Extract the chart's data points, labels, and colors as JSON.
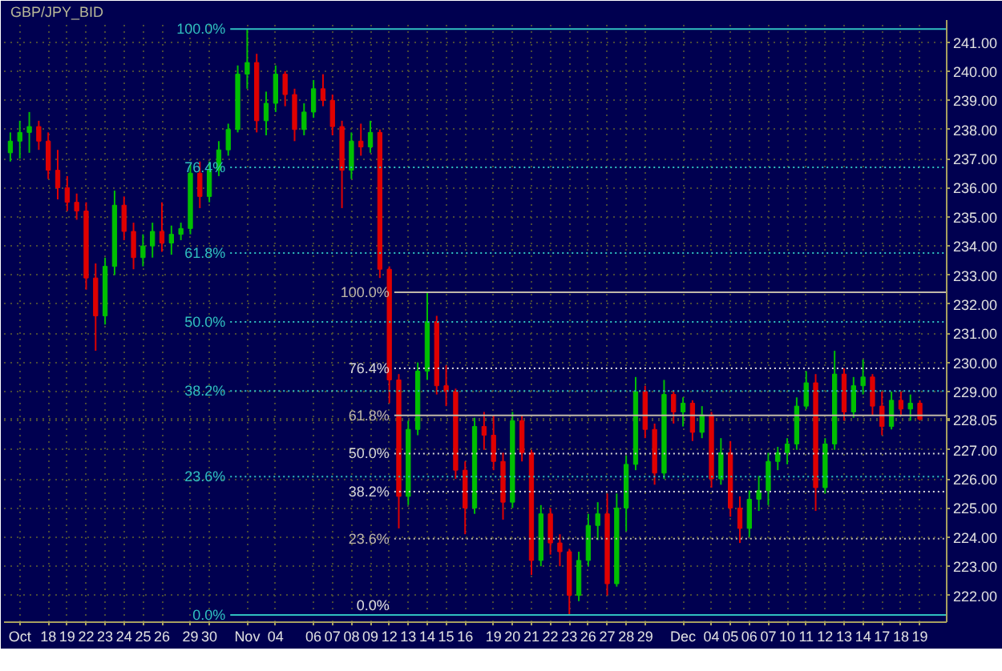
{
  "chart_data": {
    "type": "candlestick",
    "title": "GBP/JPY_BID",
    "categories": [
      null,
      "Oct",
      null,
      null,
      "18",
      null,
      "19",
      null,
      "22",
      null,
      "23",
      null,
      "24",
      null,
      "25",
      null,
      "26",
      null,
      null,
      "29",
      null,
      "30",
      null,
      null,
      null,
      "Nov",
      null,
      null,
      "04",
      null,
      null,
      null,
      "06",
      null,
      "07",
      null,
      "08",
      null,
      "09",
      null,
      "12",
      null,
      "13",
      null,
      "14",
      null,
      "15",
      null,
      "16",
      null,
      null,
      "19",
      null,
      "20",
      null,
      "21",
      null,
      "22",
      null,
      "23",
      null,
      "26",
      null,
      "27",
      null,
      "28",
      null,
      "29",
      null,
      null,
      null,
      "Dec",
      null,
      null,
      "04",
      null,
      "05",
      null,
      "06",
      null,
      "07",
      null,
      "10",
      null,
      "11",
      null,
      "12",
      null,
      "13",
      null,
      "14",
      null,
      "17",
      null,
      "18",
      null,
      "19"
    ],
    "ohlc": [
      [
        237.2,
        237.9,
        236.9,
        237.6
      ],
      [
        237.6,
        238.3,
        237.0,
        237.9
      ],
      [
        237.9,
        238.6,
        237.2,
        238.1
      ],
      [
        238.1,
        238.3,
        237.3,
        237.6
      ],
      [
        237.6,
        237.9,
        236.3,
        236.6
      ],
      [
        236.6,
        237.3,
        235.6,
        236.0
      ],
      [
        236.0,
        236.4,
        235.2,
        235.5
      ],
      [
        235.5,
        235.8,
        234.9,
        235.2
      ],
      [
        235.2,
        235.5,
        232.5,
        232.9
      ],
      [
        232.9,
        233.4,
        230.4,
        231.6
      ],
      [
        231.6,
        233.6,
        231.3,
        233.3
      ],
      [
        233.3,
        235.9,
        233.0,
        235.4
      ],
      [
        235.4,
        235.7,
        234.2,
        234.5
      ],
      [
        234.5,
        234.8,
        233.2,
        233.6
      ],
      [
        233.6,
        234.4,
        233.3,
        234.0
      ],
      [
        234.0,
        234.8,
        233.6,
        234.5
      ],
      [
        234.5,
        235.5,
        233.8,
        234.1
      ],
      [
        234.1,
        234.7,
        233.7,
        234.4
      ],
      [
        234.4,
        234.8,
        234.2,
        234.6
      ],
      [
        234.6,
        236.8,
        234.4,
        236.5
      ],
      [
        236.5,
        236.9,
        235.3,
        235.7
      ],
      [
        235.7,
        236.9,
        235.5,
        236.6
      ],
      [
        236.6,
        237.6,
        236.4,
        237.3
      ],
      [
        237.3,
        238.2,
        237.1,
        238.0
      ],
      [
        238.0,
        240.2,
        237.9,
        239.9
      ],
      [
        239.9,
        241.45,
        239.4,
        240.3
      ],
      [
        240.3,
        240.6,
        237.9,
        238.3
      ],
      [
        238.3,
        239.3,
        237.8,
        238.9
      ],
      [
        238.9,
        240.2,
        238.6,
        239.9
      ],
      [
        239.9,
        240.0,
        238.8,
        239.2
      ],
      [
        239.2,
        239.4,
        237.6,
        238.0
      ],
      [
        238.0,
        238.9,
        237.8,
        238.6
      ],
      [
        238.6,
        239.7,
        238.4,
        239.4
      ],
      [
        239.4,
        239.9,
        238.8,
        239.0
      ],
      [
        239.0,
        239.2,
        237.8,
        238.1
      ],
      [
        238.1,
        238.3,
        235.3,
        236.6
      ],
      [
        236.6,
        237.9,
        236.3,
        237.6
      ],
      [
        237.6,
        238.2,
        237.1,
        237.4
      ],
      [
        237.4,
        238.3,
        237.2,
        237.9
      ],
      [
        237.9,
        238.0,
        232.9,
        233.2
      ],
      [
        233.2,
        233.3,
        228.6,
        229.4
      ],
      [
        229.4,
        229.6,
        224.3,
        225.4
      ],
      [
        225.4,
        228.0,
        225.1,
        227.7
      ],
      [
        227.7,
        230.0,
        227.5,
        229.7
      ],
      [
        229.7,
        232.41,
        229.4,
        231.4
      ],
      [
        231.4,
        231.6,
        228.9,
        229.2
      ],
      [
        229.2,
        229.9,
        228.5,
        229.0
      ],
      [
        229.0,
        229.1,
        226.0,
        226.3
      ],
      [
        226.3,
        226.6,
        224.1,
        225.0
      ],
      [
        225.0,
        228.1,
        224.8,
        227.8
      ],
      [
        227.8,
        228.3,
        227.0,
        227.5
      ],
      [
        227.5,
        228.2,
        226.3,
        226.6
      ],
      [
        226.6,
        226.9,
        224.6,
        225.2
      ],
      [
        225.2,
        228.3,
        225.0,
        228.0
      ],
      [
        228.0,
        228.2,
        226.6,
        226.9
      ],
      [
        226.9,
        227.0,
        222.7,
        223.2
      ],
      [
        223.2,
        225.1,
        223.0,
        224.8
      ],
      [
        224.8,
        225.0,
        223.4,
        223.8
      ],
      [
        223.8,
        224.1,
        223.0,
        223.5
      ],
      [
        223.5,
        223.6,
        221.33,
        222.0
      ],
      [
        222.0,
        223.5,
        221.8,
        223.2
      ],
      [
        223.2,
        224.8,
        223.0,
        224.4
      ],
      [
        224.4,
        225.2,
        223.9,
        224.8
      ],
      [
        224.8,
        225.5,
        222.0,
        222.4
      ],
      [
        222.4,
        225.5,
        222.3,
        225.0
      ],
      [
        225.0,
        226.8,
        224.2,
        226.5
      ],
      [
        226.5,
        229.5,
        226.3,
        229.0
      ],
      [
        229.0,
        229.2,
        227.4,
        227.7
      ],
      [
        227.7,
        227.9,
        225.8,
        226.2
      ],
      [
        226.2,
        229.4,
        226.0,
        228.9
      ],
      [
        228.9,
        229.0,
        227.9,
        228.3
      ],
      [
        228.3,
        228.8,
        227.8,
        228.6
      ],
      [
        228.6,
        228.7,
        227.3,
        227.6
      ],
      [
        227.6,
        228.5,
        227.4,
        228.2
      ],
      [
        228.2,
        228.3,
        225.7,
        226.0
      ],
      [
        226.0,
        227.4,
        225.8,
        226.9
      ],
      [
        226.9,
        227.3,
        224.7,
        225.0
      ],
      [
        225.0,
        225.4,
        223.8,
        224.3
      ],
      [
        224.3,
        225.6,
        224.0,
        225.3
      ],
      [
        225.3,
        226.1,
        224.9,
        225.6
      ],
      [
        225.6,
        226.9,
        225.1,
        226.6
      ],
      [
        226.6,
        227.1,
        226.3,
        226.9
      ],
      [
        226.9,
        227.4,
        226.5,
        227.2
      ],
      [
        227.2,
        228.8,
        227.0,
        228.5
      ],
      [
        228.5,
        229.7,
        228.4,
        229.3
      ],
      [
        229.3,
        229.6,
        224.9,
        225.7
      ],
      [
        225.7,
        227.4,
        225.5,
        227.2
      ],
      [
        227.2,
        230.4,
        227.0,
        229.6
      ],
      [
        229.6,
        229.8,
        228.0,
        228.3
      ],
      [
        228.3,
        229.5,
        228.1,
        229.2
      ],
      [
        229.2,
        230.1,
        228.9,
        229.5
      ],
      [
        229.5,
        229.6,
        228.2,
        228.5
      ],
      [
        228.5,
        229.0,
        227.5,
        227.8
      ],
      [
        227.8,
        229.0,
        227.7,
        228.7
      ],
      [
        228.7,
        229.0,
        228.2,
        228.4
      ],
      [
        228.4,
        228.9,
        228.0,
        228.6
      ],
      [
        228.6,
        228.7,
        228.0,
        228.05
      ]
    ],
    "colors": [
      "#00c000",
      "#00c000",
      "#00c000",
      "#e00000",
      "#e00000",
      "#e00000",
      "#e00000",
      "#e00000",
      "#e00000",
      "#e00000",
      "#00c000",
      "#00c000",
      "#e00000",
      "#e00000",
      "#00c000",
      "#00c000",
      "#e00000",
      "#00c000",
      "#00c000",
      "#00c000",
      "#e00000",
      "#00c000",
      "#00c000",
      "#00c000",
      "#00c000",
      "#00c000",
      "#e00000",
      "#00c000",
      "#00c000",
      "#e00000",
      "#e00000",
      "#00c000",
      "#00c000",
      "#e00000",
      "#e00000",
      "#e00000",
      "#00c000",
      "#e00000",
      "#00c000",
      "#e00000",
      "#e00000",
      "#e00000",
      "#00c000",
      "#00c000",
      "#00c000",
      "#e00000",
      "#e00000",
      "#e00000",
      "#e00000",
      "#00c000",
      "#e00000",
      "#e00000",
      "#e00000",
      "#00c000",
      "#e00000",
      "#e00000",
      "#00c000",
      "#e00000",
      "#e00000",
      "#e00000",
      "#00c000",
      "#00c000",
      "#00c000",
      "#e00000",
      "#00c000",
      "#00c000",
      "#00c000",
      "#e00000",
      "#e00000",
      "#00c000",
      "#e00000",
      "#00c000",
      "#e00000",
      "#00c000",
      "#e00000",
      "#00c000",
      "#e00000",
      "#e00000",
      "#00c000",
      "#00c000",
      "#00c000",
      "#00c000",
      "#00c000",
      "#00c000",
      "#00c000",
      "#e00000",
      "#00c000",
      "#00c000",
      "#e00000",
      "#00c000",
      "#00c000",
      "#e00000",
      "#e00000",
      "#00c000",
      "#e00000",
      "#00c000",
      "#e00000"
    ],
    "ylim": [
      221.08,
      241.76
    ],
    "yticks": [
      {
        "value": 222,
        "label": "222.00"
      },
      {
        "value": 223,
        "label": "223.00"
      },
      {
        "value": 224,
        "label": "224.00"
      },
      {
        "value": 225,
        "label": "225.00"
      },
      {
        "value": 226,
        "label": "226.00"
      },
      {
        "value": 227,
        "label": "227.00"
      },
      {
        "value": 228,
        "label": null
      },
      228.05,
      {
        "value": 229,
        "label": "229.00"
      },
      {
        "value": 230,
        "label": "230.00"
      },
      {
        "value": 231,
        "label": "231.00"
      },
      {
        "value": 232,
        "label": "232.00"
      },
      {
        "value": 233,
        "label": "233.00"
      },
      {
        "value": 234,
        "label": "234.00"
      },
      {
        "value": 235,
        "label": "235.00"
      },
      {
        "value": 236,
        "label": "236.00"
      },
      {
        "value": 237,
        "label": "237.00"
      },
      {
        "value": 238,
        "label": "238.00"
      },
      {
        "value": 239,
        "label": "239.00"
      },
      {
        "value": 240,
        "label": "240.00"
      },
      {
        "value": 241,
        "label": "241.00"
      }
    ],
    "ref_lines": [
      {
        "axis": "y",
        "value": 241.45,
        "color": "#30c0c0",
        "line_style": "solid"
      },
      {
        "axis": "y",
        "value": 236.7,
        "color": "#30c0c0",
        "line_style": "dotted"
      },
      {
        "axis": "y",
        "value": 233.76,
        "color": "#30c0c0",
        "line_style": "dotted"
      },
      {
        "axis": "y",
        "value": 231.39,
        "color": "#30c0c0",
        "line_style": "dotted"
      },
      {
        "axis": "y",
        "value": 229.02,
        "color": "#30c0c0",
        "line_style": "dotted"
      },
      {
        "axis": "y",
        "value": 226.08,
        "color": "#30c0c0",
        "line_style": "dotted"
      },
      {
        "axis": "y",
        "value": 221.33,
        "color": "#30c0c0",
        "line_style": "solid"
      },
      {
        "axis": "y",
        "value": 232.41,
        "color": "#c0b8a8",
        "line_style": "solid"
      },
      {
        "axis": "y",
        "value": 229.8,
        "color": "#d8d8d8",
        "line_style": "dotted"
      },
      {
        "axis": "y",
        "value": 228.18,
        "color": "#c0b8a8",
        "line_style": "solid"
      },
      {
        "axis": "y",
        "value": 226.87,
        "color": "#d8d8d8",
        "line_style": "dotted"
      },
      {
        "axis": "y",
        "value": 225.56,
        "color": "#d8d8d8",
        "line_style": "dotted"
      },
      {
        "axis": "y",
        "value": 223.95,
        "color": "#c0b8a8",
        "line_style": "dotted"
      }
    ],
    "annotations": [
      "100.0%",
      "76.4%",
      "61.8%",
      "50.0%",
      "38.2%",
      "23.6%",
      "0.0%",
      "100.0%",
      "76.4%",
      "61.8%",
      "50.0%",
      "38.2%",
      "23.6%",
      {
        "text": "0.0%",
        "y": 221.33
      }
    ],
    "grid": true
  }
}
